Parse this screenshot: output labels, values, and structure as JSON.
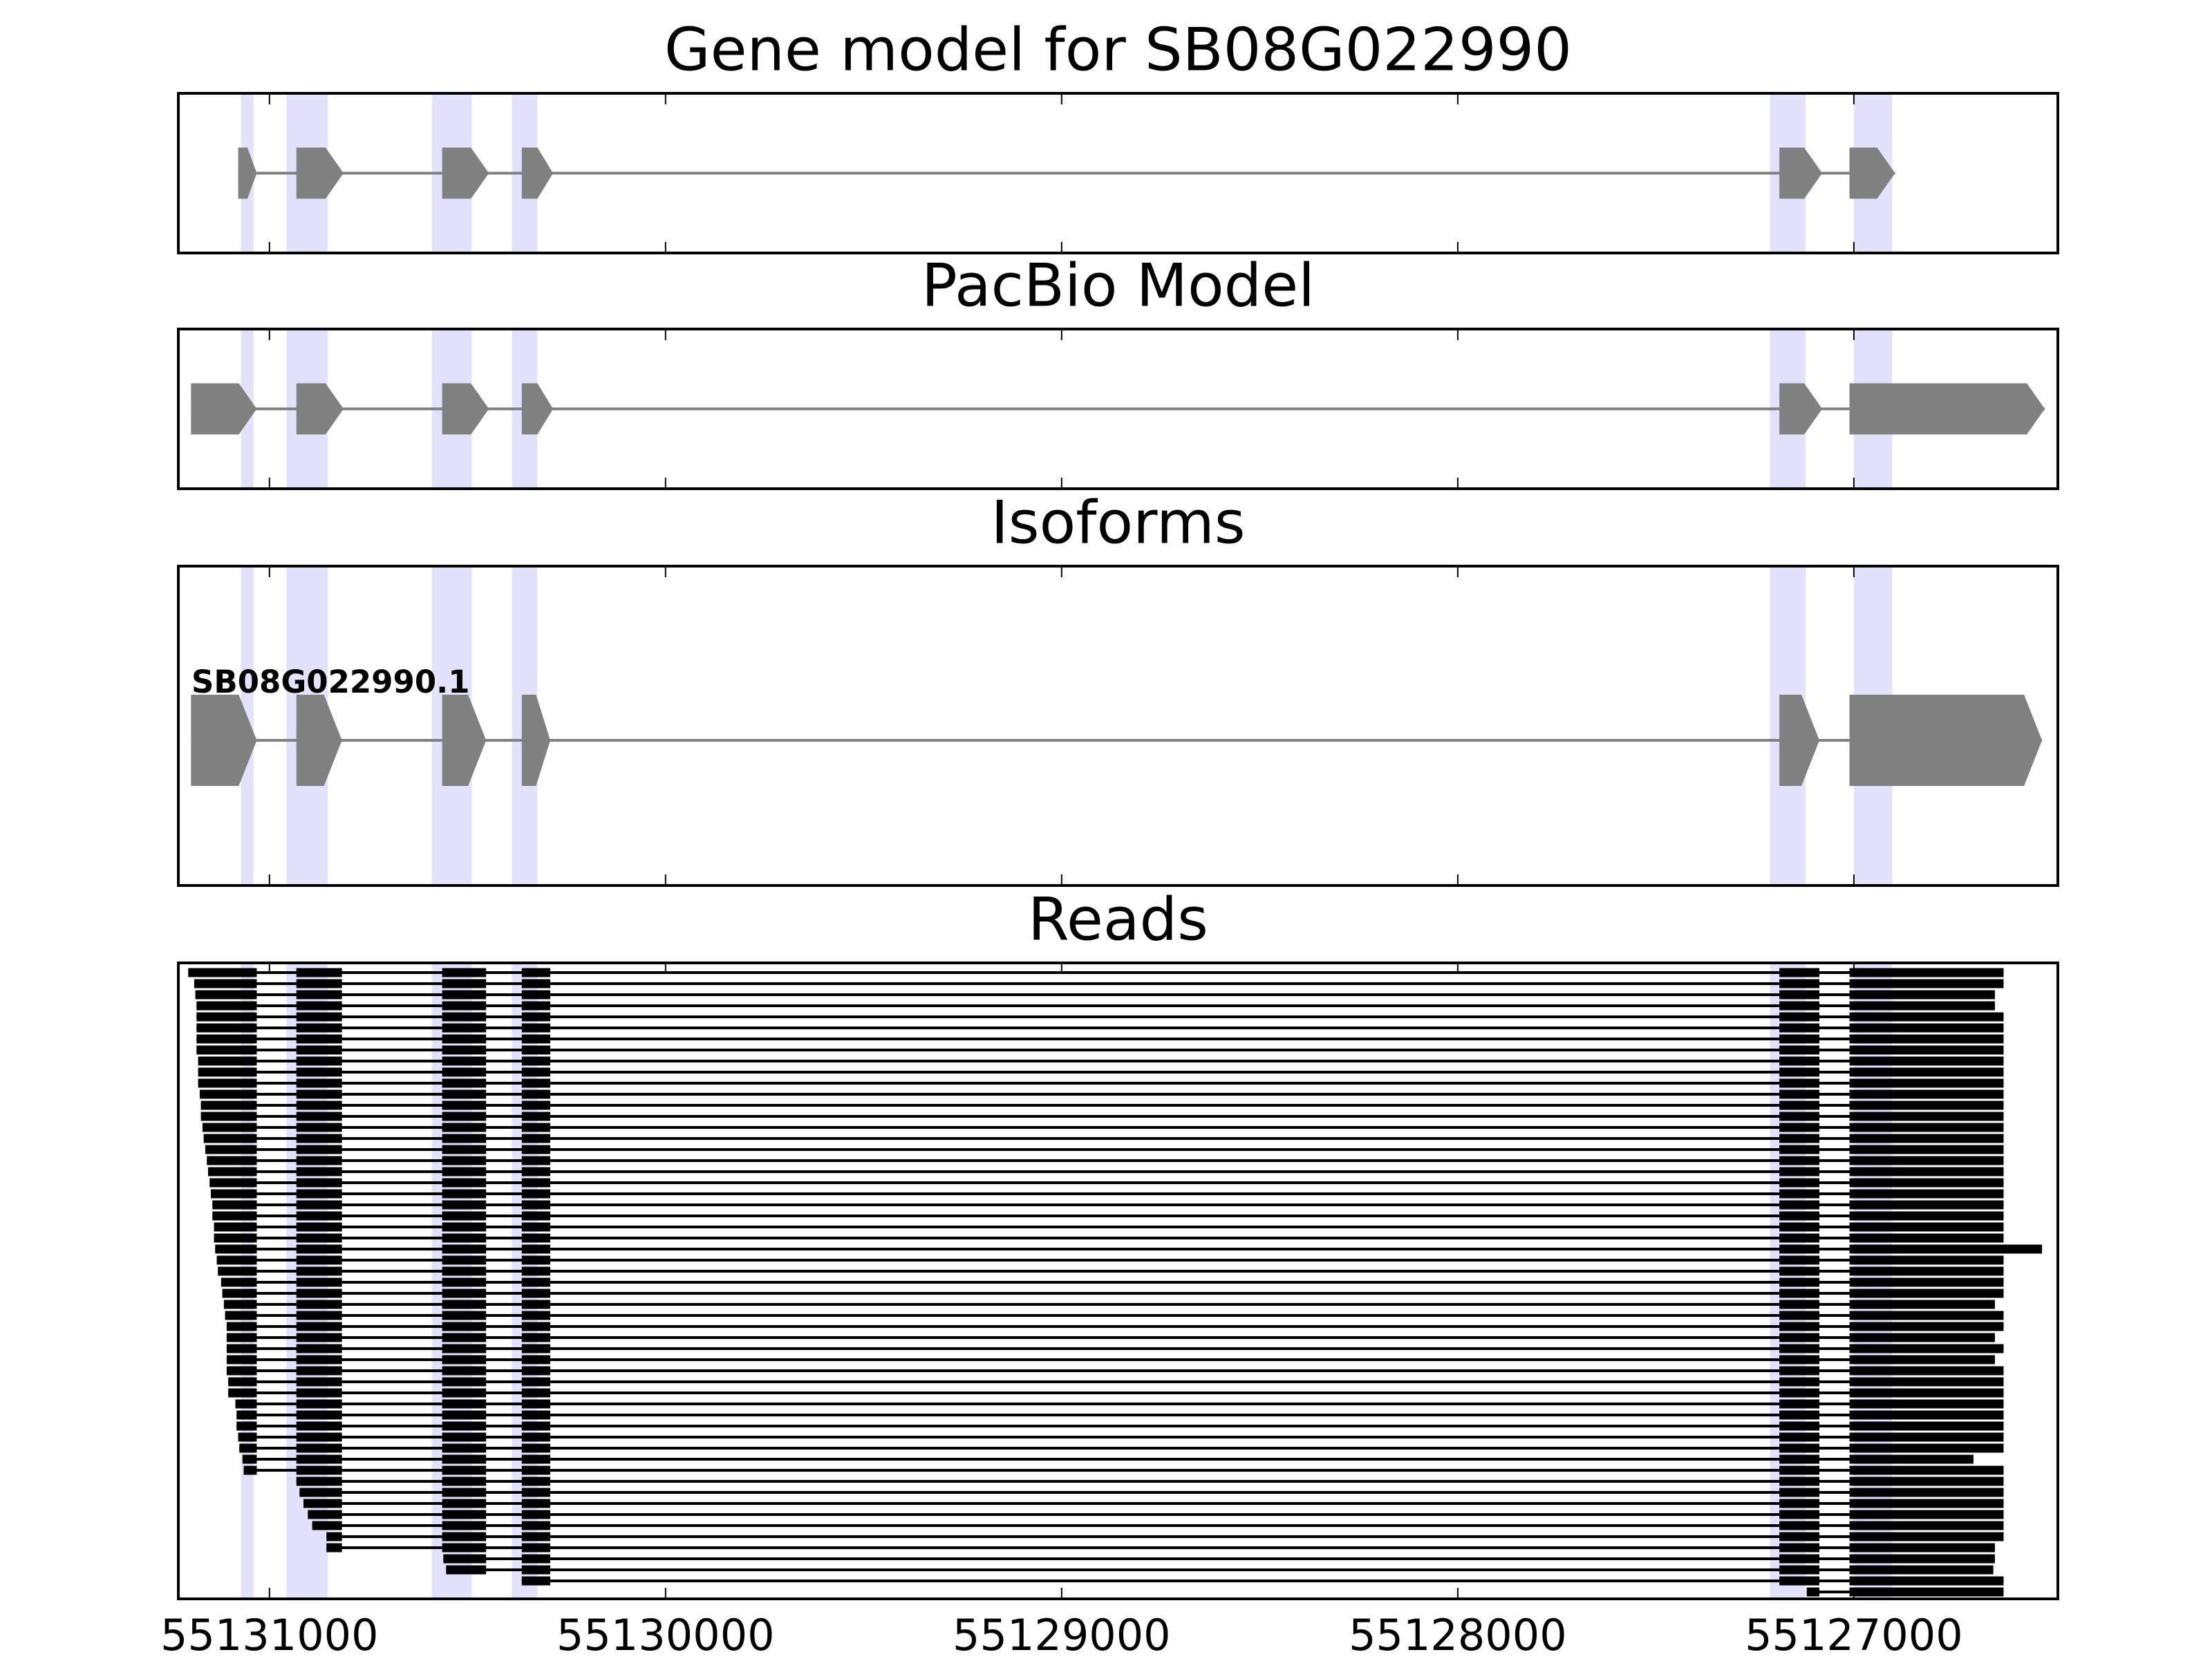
{
  "chart_data": [
    {
      "type": "gene-model",
      "title": "Gene model for SB08G022990",
      "color": "#808080",
      "xlim": [
        55131230,
        55126485
      ],
      "xticks": [
        55131000,
        55130000,
        55129000,
        55128000,
        55127000
      ],
      "highlight_color": "#e2e2fc",
      "highlights": [
        [
          55131072,
          55131040
        ],
        [
          55130957,
          55130853
        ],
        [
          55130590,
          55130489
        ],
        [
          55130388,
          55130324
        ],
        [
          55127212,
          55127122
        ],
        [
          55127000,
          55126903
        ]
      ],
      "exons": [
        [
          55131079,
          55131032
        ],
        [
          55130932,
          55130813
        ],
        [
          55130564,
          55130446
        ],
        [
          55130363,
          55130284
        ],
        [
          55127188,
          55127080
        ],
        [
          55127011,
          55126896
        ]
      ]
    },
    {
      "type": "gene-model",
      "title": "PacBio Model",
      "color": "#808080",
      "xlim": [
        55131230,
        55126485
      ],
      "xticks": [
        55131000,
        55130000,
        55129000,
        55128000,
        55127000
      ],
      "exons": [
        [
          55131198,
          55131032
        ],
        [
          55130932,
          55130813
        ],
        [
          55130564,
          55130446
        ],
        [
          55130363,
          55130284
        ],
        [
          55127188,
          55127080
        ],
        [
          55127011,
          55126518
        ]
      ]
    },
    {
      "type": "isoforms",
      "title": "Isoforms",
      "color": "#808080",
      "labels": [
        "SB08G022990.1"
      ],
      "xlim": [
        55131230,
        55126485
      ],
      "xticks": [
        55131000,
        55130000,
        55129000,
        55128000,
        55127000
      ],
      "exons": [
        [
          55131198,
          55131032
        ],
        [
          55130932,
          55130817
        ],
        [
          55130564,
          55130453
        ],
        [
          55130363,
          55130291
        ],
        [
          55127188,
          55127087
        ],
        [
          55127011,
          55126525
        ]
      ]
    },
    {
      "type": "reads",
      "title": "Reads",
      "color": "#000000",
      "xlim": [
        55131230,
        55126485
      ],
      "xticks": [
        55131000,
        55130000,
        55129000,
        55128000,
        55127000
      ],
      "reads": [
        [
          55131205,
          55126622
        ],
        [
          55131190,
          55126622
        ],
        [
          55131187,
          55126644
        ],
        [
          55131184,
          55126644
        ],
        [
          55131184,
          55126622
        ],
        [
          55131184,
          55126622
        ],
        [
          55131184,
          55126622
        ],
        [
          55131184,
          55126622
        ],
        [
          55131180,
          55126622
        ],
        [
          55131180,
          55126622
        ],
        [
          55131180,
          55126622
        ],
        [
          55131176,
          55126622
        ],
        [
          55131173,
          55126622
        ],
        [
          55131173,
          55126622
        ],
        [
          55131169,
          55126622
        ],
        [
          55131166,
          55126622
        ],
        [
          55131162,
          55126622
        ],
        [
          55131158,
          55126622
        ],
        [
          55131155,
          55126622
        ],
        [
          55131151,
          55126622
        ],
        [
          55131148,
          55126622
        ],
        [
          55131144,
          55126622
        ],
        [
          55131144,
          55126622
        ],
        [
          55131140,
          55126622
        ],
        [
          55131140,
          55126622
        ],
        [
          55131137,
          55126525
        ],
        [
          55131133,
          55126622
        ],
        [
          55131130,
          55126622
        ],
        [
          55131122,
          55126622
        ],
        [
          55131119,
          55126622
        ],
        [
          55131115,
          55126644
        ],
        [
          55131112,
          55126622
        ],
        [
          55131108,
          55126622
        ],
        [
          55131108,
          55126644
        ],
        [
          55131108,
          55126622
        ],
        [
          55131108,
          55126644
        ],
        [
          55131108,
          55126622
        ],
        [
          55131104,
          55126622
        ],
        [
          55131104,
          55126622
        ],
        [
          55131086,
          55126622
        ],
        [
          55131083,
          55126622
        ],
        [
          55131083,
          55126622
        ],
        [
          55131079,
          55126622
        ],
        [
          55131076,
          55126622
        ],
        [
          55131068,
          55126698
        ],
        [
          55131065,
          55126622
        ],
        [
          55130932,
          55126622
        ],
        [
          55130924,
          55126622
        ],
        [
          55130914,
          55126622
        ],
        [
          55130903,
          55126622
        ],
        [
          55130892,
          55126622
        ],
        [
          55130856,
          55126622
        ],
        [
          55130856,
          55126644
        ],
        [
          55130561,
          55126644
        ],
        [
          55130554,
          55126648
        ],
        [
          55130363,
          55126622
        ],
        [
          55127119,
          55126622
        ]
      ]
    }
  ]
}
